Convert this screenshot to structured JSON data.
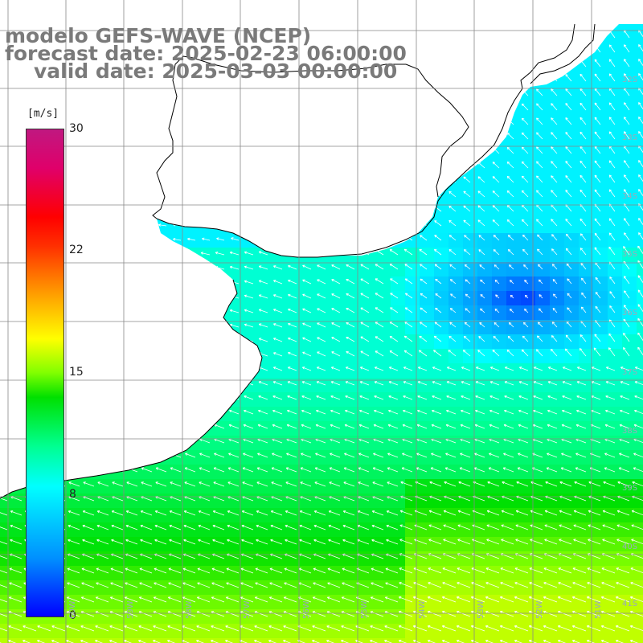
{
  "header": {
    "model_line": "modelo GEFS-WAVE (NCEP)",
    "forecast_line": "forecast date: 2025-02-23 06:00:00",
    "valid_line": "valid date: 2025-03-03 00:00:00"
  },
  "colorbar": {
    "unit": "[m/s]",
    "ticks": [
      "30",
      "22",
      "15",
      "8",
      "0"
    ],
    "tick_values": [
      30,
      22,
      15,
      8,
      0
    ],
    "min": 0,
    "max": 30
  },
  "latitude_labels": [
    "32S",
    "33S",
    "34S",
    "35S",
    "36S",
    "37S",
    "38S",
    "39S",
    "40S",
    "41S"
  ],
  "longitude_labels": [
    "60W",
    "59W",
    "58W",
    "57W",
    "56W",
    "55W",
    "54W",
    "53W",
    "52W",
    "51W"
  ],
  "colors": {
    "ocean_low": "#0000ff",
    "ocean_mid": "#00ffff",
    "ocean_high": "#00e000",
    "land": "#ffffff",
    "grid": "#888888",
    "coastline": "#000000",
    "arrows": "#ffffff",
    "title_text": "#7a7a7a"
  }
}
